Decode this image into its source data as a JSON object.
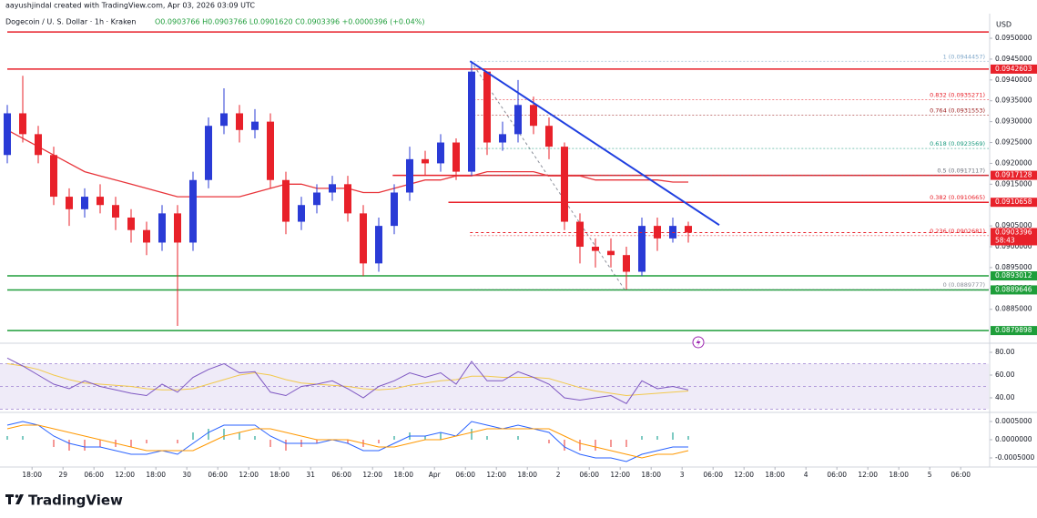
{
  "header": {
    "creator": "aayushjindal created with TradingView.com, Apr 03, 2026 03:09 UTC",
    "symbol": "Dogecoin / U. S. Dollar · 1h · Kraken",
    "ohlc": "O0.0903766 H0.0903766 L0.0901620 C0.0903396 +0.0000396 (+0.04%)"
  },
  "currency": "USD",
  "brand": "TradingView",
  "chart_data": [
    {
      "type": "candlestick",
      "ylim": [
        0.08773,
        0.09559
      ],
      "yticks": [
        {
          "value": 0.095,
          "label": "0.0950000"
        },
        {
          "value": 0.0945,
          "label": "0.0945000"
        },
        {
          "value": 0.094,
          "label": "0.0940000"
        },
        {
          "value": 0.0935,
          "label": "0.0935000"
        },
        {
          "value": 0.093,
          "label": "0.0930000"
        },
        {
          "value": 0.0925,
          "label": "0.0925000"
        },
        {
          "value": 0.092,
          "label": "0.0920000"
        },
        {
          "value": 0.0915,
          "label": "0.0915000"
        },
        {
          "value": 0.091,
          "label": "0.0910000"
        },
        {
          "value": 0.0905,
          "label": "0.0905000"
        },
        {
          "value": 0.09,
          "label": "0.0900000"
        },
        {
          "value": 0.0895,
          "label": "0.0895000"
        },
        {
          "value": 0.089,
          "label": "0.0890000"
        },
        {
          "value": 0.0885,
          "label": "0.0885000"
        }
      ],
      "xticks": [
        {
          "value": 1.6,
          "label": "18:00"
        },
        {
          "value": 3.6,
          "label": "29"
        },
        {
          "value": 5.6,
          "label": "06:00"
        },
        {
          "value": 7.6,
          "label": "12:00"
        },
        {
          "value": 9.6,
          "label": "18:00"
        },
        {
          "value": 11.6,
          "label": "30"
        },
        {
          "value": 13.6,
          "label": "06:00"
        },
        {
          "value": 15.6,
          "label": "12:00"
        },
        {
          "value": 17.6,
          "label": "18:00"
        },
        {
          "value": 19.6,
          "label": "31"
        },
        {
          "value": 21.6,
          "label": "06:00"
        },
        {
          "value": 23.6,
          "label": "12:00"
        },
        {
          "value": 25.6,
          "label": "18:00"
        },
        {
          "value": 27.6,
          "label": "Apr"
        },
        {
          "value": 29.6,
          "label": "06:00"
        },
        {
          "value": 31.6,
          "label": "12:00"
        },
        {
          "value": 33.6,
          "label": "18:00"
        },
        {
          "value": 35.6,
          "label": "2"
        },
        {
          "value": 37.6,
          "label": "06:00"
        },
        {
          "value": 39.6,
          "label": "12:00"
        },
        {
          "value": 41.6,
          "label": "18:00"
        },
        {
          "value": 43.6,
          "label": "3"
        },
        {
          "value": 45.6,
          "label": "06:00"
        },
        {
          "value": 47.6,
          "label": "12:00"
        },
        {
          "value": 49.6,
          "label": "18:00"
        },
        {
          "value": 51.6,
          "label": "4"
        },
        {
          "value": 53.6,
          "label": "06:00"
        },
        {
          "value": 55.6,
          "label": "12:00"
        },
        {
          "value": 57.6,
          "label": "18:00"
        },
        {
          "value": 59.6,
          "label": "5"
        },
        {
          "value": 61.6,
          "label": "06:00"
        }
      ],
      "up_color": "#2a3bd6",
      "down_color": "#e8212a",
      "open": [
        0.0922,
        0.0932,
        0.0927,
        0.0922,
        0.0912,
        0.0909,
        0.0912,
        0.091,
        0.0907,
        0.0904,
        0.0901,
        0.0908,
        0.0901,
        0.0916,
        0.0929,
        0.0932,
        0.0928,
        0.093,
        0.0916,
        0.0906,
        0.091,
        0.0913,
        0.0915,
        0.0908,
        0.0896,
        0.0905,
        0.0913,
        0.0921,
        0.092,
        0.0925,
        0.0918,
        0.0942,
        0.0925,
        0.0927,
        0.0934,
        0.0929,
        0.0924,
        0.0906,
        0.09,
        0.0899,
        0.0898,
        0.0894,
        0.0905,
        0.0902,
        0.0905
      ],
      "high": [
        0.0934,
        0.0941,
        0.0929,
        0.0924,
        0.0914,
        0.0914,
        0.0915,
        0.0912,
        0.0909,
        0.0906,
        0.091,
        0.091,
        0.0918,
        0.0931,
        0.0938,
        0.0934,
        0.0933,
        0.0932,
        0.0918,
        0.0912,
        0.0915,
        0.0917,
        0.0917,
        0.091,
        0.0907,
        0.0915,
        0.0924,
        0.0923,
        0.0927,
        0.0926,
        0.0944457,
        0.0942,
        0.093,
        0.094,
        0.0936,
        0.0931,
        0.0925,
        0.0908,
        0.0902,
        0.0902,
        0.09,
        0.0907,
        0.0907,
        0.0907,
        0.0906
      ],
      "low": [
        0.092,
        0.0925,
        0.092,
        0.091,
        0.0905,
        0.0907,
        0.0908,
        0.0904,
        0.0901,
        0.0898,
        0.0899,
        0.0881,
        0.0899,
        0.0914,
        0.0927,
        0.0925,
        0.0926,
        0.0914,
        0.0903,
        0.0904,
        0.0908,
        0.0911,
        0.0906,
        0.0893,
        0.0894,
        0.0903,
        0.0911,
        0.0917,
        0.0918,
        0.0916,
        0.0917,
        0.0922,
        0.0923,
        0.0925,
        0.0927,
        0.0921,
        0.0904,
        0.0896,
        0.0895,
        0.0895,
        0.0889777,
        0.0893,
        0.0899,
        0.0901,
        0.0901
      ],
      "close": [
        0.0932,
        0.0927,
        0.0922,
        0.0912,
        0.0909,
        0.0912,
        0.091,
        0.0907,
        0.0904,
        0.0901,
        0.0908,
        0.0901,
        0.0916,
        0.0929,
        0.0932,
        0.0928,
        0.093,
        0.0916,
        0.0906,
        0.091,
        0.0913,
        0.0915,
        0.0908,
        0.0896,
        0.0905,
        0.0913,
        0.0921,
        0.092,
        0.0925,
        0.0918,
        0.0942,
        0.0925,
        0.0927,
        0.0934,
        0.0929,
        0.0924,
        0.0906,
        0.09,
        0.0899,
        0.0898,
        0.0894,
        0.0905,
        0.0902,
        0.0905,
        0.0903396
      ],
      "ma": {
        "color": "#e8353b",
        "values": [
          0.0928,
          0.0926,
          0.0924,
          0.0922,
          0.092,
          0.0918,
          0.0917,
          0.0916,
          0.0915,
          0.0914,
          0.0913,
          0.0912,
          0.0912,
          0.0912,
          0.0912,
          0.0912,
          0.0913,
          0.0914,
          0.0915,
          0.0915,
          0.0914,
          0.0914,
          0.0914,
          0.0913,
          0.0913,
          0.0914,
          0.0915,
          0.0916,
          0.0916,
          0.0917,
          0.0917,
          0.0918,
          0.0918,
          0.0918,
          0.0918,
          0.0917,
          0.0917,
          0.0917,
          0.0916,
          0.0916,
          0.0916,
          0.0916,
          0.0916,
          0.09155,
          0.09155
        ]
      },
      "levels": [
        {
          "value": 0.09515,
          "color": "#e8212a",
          "tagged": false,
          "from": 0
        },
        {
          "value": 0.0942603,
          "color": "#e8212a",
          "tagged": true,
          "from": 0
        },
        {
          "value": 0.0917128,
          "color": "#e8212a",
          "tagged": true,
          "from": 24.9
        },
        {
          "value": 0.0910658,
          "color": "#e8212a",
          "tagged": true,
          "from": 28.5
        },
        {
          "value": 0.0893012,
          "color": "#1e9e3a",
          "tagged": true,
          "from": 0
        },
        {
          "value": 0.0889646,
          "color": "#1e9e3a",
          "tagged": true,
          "from": 0
        },
        {
          "value": 0.0879898,
          "color": "#1e9e3a",
          "tagged": true,
          "from": 0
        }
      ],
      "fib": {
        "from": 29.9,
        "levels": [
          {
            "value": 0.0944457,
            "label": "1 (0.0944457)",
            "color": "#7fa7c9"
          },
          {
            "value": 0.0935271,
            "label": "0.832 (0.0935271)",
            "color": "#e8212a"
          },
          {
            "value": 0.0931553,
            "label": "0.764 (0.0931553)",
            "color": "#9b1c1c"
          },
          {
            "value": 0.0923569,
            "label": "0.618 (0.0923569)",
            "color": "#199a7e"
          },
          {
            "value": 0.0917117,
            "label": "0.5 (0.0917117)",
            "color": "#6b6f7a"
          },
          {
            "value": 0.0910665,
            "label": "0.382 (0.0910665)",
            "color": "#e8212a"
          },
          {
            "value": 0.0902681,
            "label": "0.236 (0.0902681)",
            "color": "#e8212a"
          },
          {
            "value": 0.0889777,
            "label": "0 (0.0889777)",
            "color": "#8a8e99"
          }
        ]
      },
      "last_price": {
        "value": 0.0903396,
        "countdown": "58:43",
        "color": "#e8212a"
      },
      "trendline": {
        "x": [
          29.9,
          46
        ],
        "y": [
          0.09445,
          0.09052
        ],
        "color": "#1f3fe0"
      }
    },
    {
      "type": "rsi",
      "ylim": [
        28,
        85.6
      ],
      "yticks": [
        {
          "value": 80,
          "label": "80.00"
        },
        {
          "value": 60,
          "label": "60.00"
        },
        {
          "value": 40,
          "label": "40.00"
        }
      ],
      "band": [
        30,
        70
      ],
      "levels": [
        70,
        50,
        30
      ],
      "series": [
        {
          "color": "#7e57c2",
          "values": [
            75,
            68,
            60,
            52,
            48,
            55,
            50,
            47,
            44,
            42,
            52,
            45,
            58,
            65,
            70,
            62,
            63,
            45,
            42,
            50,
            52,
            55,
            48,
            40,
            50,
            55,
            62,
            58,
            62,
            52,
            72,
            55,
            55,
            63,
            58,
            52,
            40,
            38,
            40,
            42,
            35,
            55,
            48,
            50,
            47
          ]
        },
        {
          "color": "#f2c94c",
          "values": [
            70,
            68,
            65,
            60,
            56,
            53,
            52,
            51,
            50,
            48,
            47,
            47,
            48,
            52,
            56,
            60,
            62,
            60,
            56,
            53,
            52,
            51,
            50,
            48,
            47,
            48,
            51,
            53,
            55,
            56,
            59,
            59,
            58,
            58,
            58,
            57,
            53,
            49,
            46,
            44,
            42,
            43,
            44,
            45,
            46
          ]
        }
      ]
    },
    {
      "type": "macd",
      "ylim": [
        -0.000725,
        0.0007
      ],
      "yticks": [
        {
          "value": 0.0005,
          "label": "0.0005000"
        },
        {
          "value": 0,
          "label": "0.0000000"
        },
        {
          "value": -0.0005,
          "label": "-0.0005000"
        }
      ],
      "histogram": {
        "up_color": "#26a69a",
        "down_color": "#ef5350",
        "values": [
          0.0001,
          0.0001,
          0,
          -0.0002,
          -0.0003,
          -0.0003,
          -0.0002,
          -0.0002,
          -0.0002,
          -0.0001,
          0,
          -0.0001,
          0.0002,
          0.0003,
          0.0003,
          0.0002,
          0.0001,
          -0.0002,
          -0.0003,
          -0.0002,
          -0.0001,
          0,
          -0.0001,
          -0.0002,
          -0.0001,
          0.0001,
          0.0002,
          0.0001,
          0.0002,
          0,
          0.0003,
          0.0001,
          0,
          0.0001,
          0,
          -0.0001,
          -0.0003,
          -0.0003,
          -0.0003,
          -0.0002,
          -0.0002,
          0.0001,
          0.0001,
          0.0002,
          0.0001
        ]
      },
      "series": [
        {
          "color": "#2962ff",
          "values": [
            0.0004,
            0.0005,
            0.0004,
            0.0001,
            -0.0001,
            -0.0002,
            -0.0002,
            -0.0003,
            -0.0004,
            -0.0004,
            -0.0003,
            -0.0004,
            -0.0001,
            0.0002,
            0.0004,
            0.0004,
            0.0004,
            0.0001,
            -0.0001,
            -0.0001,
            -0.0001,
            0,
            -0.0001,
            -0.0003,
            -0.0003,
            -0.0001,
            0.0001,
            0.0001,
            0.0002,
            0.0001,
            0.0005,
            0.0004,
            0.0003,
            0.0004,
            0.0003,
            0.0002,
            -0.0002,
            -0.0004,
            -0.0005,
            -0.0005,
            -0.0006,
            -0.0004,
            -0.0003,
            -0.0002,
            -0.0002
          ]
        },
        {
          "color": "#ff9800",
          "values": [
            0.0003,
            0.0004,
            0.0004,
            0.0003,
            0.0002,
            0.0001,
            0,
            -0.0001,
            -0.0002,
            -0.0003,
            -0.0003,
            -0.0003,
            -0.0003,
            -0.0001,
            0.0001,
            0.0002,
            0.0003,
            0.0003,
            0.0002,
            0.0001,
            0,
            0,
            0,
            -0.0001,
            -0.0002,
            -0.0002,
            -0.0001,
            0,
            0,
            0.0001,
            0.0002,
            0.0003,
            0.0003,
            0.0003,
            0.0003,
            0.0003,
            0.0001,
            -0.0001,
            -0.0002,
            -0.0003,
            -0.0004,
            -0.0005,
            -0.0004,
            -0.0004,
            -0.0003
          ]
        }
      ]
    }
  ]
}
